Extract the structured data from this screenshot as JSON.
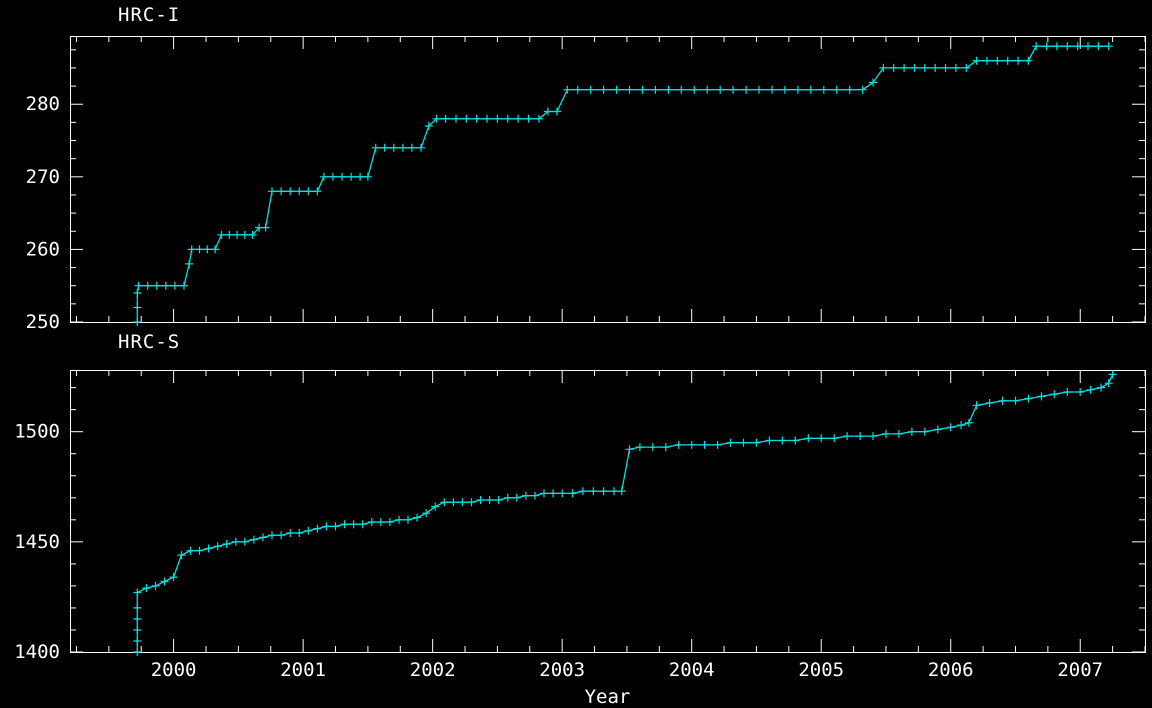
{
  "figure": {
    "bg_color": "#000000",
    "axis_color": "#ffffff",
    "series_color": "#00e0e0"
  },
  "chart_data": [
    {
      "type": "line",
      "title": "HRC-I",
      "xlabel": "",
      "ylabel": "",
      "marker": "plus",
      "legend": "none",
      "grid": false,
      "xlim": [
        1999.2,
        2007.5
      ],
      "ylim": [
        250,
        289.4
      ],
      "xticks": [
        2000,
        2001,
        2002,
        2003,
        2004,
        2005,
        2006,
        2007
      ],
      "xtick_minor_step": 0.25,
      "yticks": [
        250,
        260,
        270,
        280
      ],
      "ytick_minor_step": 2.5,
      "show_x_labels": false,
      "points": [
        [
          1999.72,
          250
        ],
        [
          1999.72,
          252
        ],
        [
          1999.72,
          254
        ],
        [
          1999.73,
          255
        ],
        [
          1999.8,
          255
        ],
        [
          1999.87,
          255
        ],
        [
          1999.94,
          255
        ],
        [
          2000.01,
          255
        ],
        [
          2000.08,
          255
        ],
        [
          2000.12,
          258
        ],
        [
          2000.14,
          260
        ],
        [
          2000.2,
          260
        ],
        [
          2000.26,
          260
        ],
        [
          2000.32,
          260
        ],
        [
          2000.37,
          262
        ],
        [
          2000.43,
          262
        ],
        [
          2000.49,
          262
        ],
        [
          2000.55,
          262
        ],
        [
          2000.61,
          262
        ],
        [
          2000.66,
          263
        ],
        [
          2000.71,
          263
        ],
        [
          2000.76,
          268
        ],
        [
          2000.83,
          268
        ],
        [
          2000.9,
          268
        ],
        [
          2000.97,
          268
        ],
        [
          2001.04,
          268
        ],
        [
          2001.11,
          268
        ],
        [
          2001.16,
          270
        ],
        [
          2001.23,
          270
        ],
        [
          2001.3,
          270
        ],
        [
          2001.37,
          270
        ],
        [
          2001.44,
          270
        ],
        [
          2001.5,
          270
        ],
        [
          2001.56,
          274
        ],
        [
          2001.63,
          274
        ],
        [
          2001.7,
          274
        ],
        [
          2001.77,
          274
        ],
        [
          2001.84,
          274
        ],
        [
          2001.91,
          274
        ],
        [
          2001.97,
          277
        ],
        [
          2002.03,
          278
        ],
        [
          2002.1,
          278
        ],
        [
          2002.18,
          278
        ],
        [
          2002.26,
          278
        ],
        [
          2002.34,
          278
        ],
        [
          2002.42,
          278
        ],
        [
          2002.5,
          278
        ],
        [
          2002.58,
          278
        ],
        [
          2002.66,
          278
        ],
        [
          2002.74,
          278
        ],
        [
          2002.82,
          278
        ],
        [
          2002.89,
          279
        ],
        [
          2002.96,
          279
        ],
        [
          2003.04,
          282
        ],
        [
          2003.12,
          282
        ],
        [
          2003.22,
          282
        ],
        [
          2003.32,
          282
        ],
        [
          2003.42,
          282
        ],
        [
          2003.52,
          282
        ],
        [
          2003.62,
          282
        ],
        [
          2003.72,
          282
        ],
        [
          2003.82,
          282
        ],
        [
          2003.92,
          282
        ],
        [
          2004.02,
          282
        ],
        [
          2004.12,
          282
        ],
        [
          2004.22,
          282
        ],
        [
          2004.32,
          282
        ],
        [
          2004.42,
          282
        ],
        [
          2004.52,
          282
        ],
        [
          2004.62,
          282
        ],
        [
          2004.72,
          282
        ],
        [
          2004.82,
          282
        ],
        [
          2004.92,
          282
        ],
        [
          2005.02,
          282
        ],
        [
          2005.12,
          282
        ],
        [
          2005.22,
          282
        ],
        [
          2005.32,
          282
        ],
        [
          2005.4,
          283
        ],
        [
          2005.48,
          285
        ],
        [
          2005.56,
          285
        ],
        [
          2005.64,
          285
        ],
        [
          2005.72,
          285
        ],
        [
          2005.8,
          285
        ],
        [
          2005.88,
          285
        ],
        [
          2005.96,
          285
        ],
        [
          2006.04,
          285
        ],
        [
          2006.12,
          285
        ],
        [
          2006.2,
          286
        ],
        [
          2006.28,
          286
        ],
        [
          2006.36,
          286
        ],
        [
          2006.44,
          286
        ],
        [
          2006.52,
          286
        ],
        [
          2006.6,
          286
        ],
        [
          2006.66,
          288
        ],
        [
          2006.74,
          288
        ],
        [
          2006.82,
          288
        ],
        [
          2006.9,
          288
        ],
        [
          2006.98,
          288
        ],
        [
          2007.06,
          288
        ],
        [
          2007.14,
          288
        ],
        [
          2007.22,
          288
        ]
      ]
    },
    {
      "type": "line",
      "title": "HRC-S",
      "xlabel": "Year",
      "ylabel": "",
      "marker": "plus",
      "legend": "none",
      "grid": false,
      "xlim": [
        1999.2,
        2007.5
      ],
      "ylim": [
        1400,
        1528
      ],
      "xticks": [
        2000,
        2001,
        2002,
        2003,
        2004,
        2005,
        2006,
        2007
      ],
      "xtick_minor_step": 0.25,
      "yticks": [
        1400,
        1450,
        1500
      ],
      "ytick_minor_step": 10,
      "show_x_labels": true,
      "points": [
        [
          1999.72,
          1400
        ],
        [
          1999.72,
          1405
        ],
        [
          1999.72,
          1410
        ],
        [
          1999.72,
          1415
        ],
        [
          1999.72,
          1420
        ],
        [
          1999.72,
          1427
        ],
        [
          1999.79,
          1429
        ],
        [
          1999.86,
          1430
        ],
        [
          1999.93,
          1432
        ],
        [
          2000.0,
          1434
        ],
        [
          2000.06,
          1444
        ],
        [
          2000.13,
          1446
        ],
        [
          2000.2,
          1446
        ],
        [
          2000.27,
          1447
        ],
        [
          2000.34,
          1448
        ],
        [
          2000.41,
          1449
        ],
        [
          2000.48,
          1450
        ],
        [
          2000.55,
          1450
        ],
        [
          2000.62,
          1451
        ],
        [
          2000.69,
          1452
        ],
        [
          2000.76,
          1453
        ],
        [
          2000.83,
          1453
        ],
        [
          2000.9,
          1454
        ],
        [
          2000.97,
          1454
        ],
        [
          2001.04,
          1455
        ],
        [
          2001.11,
          1456
        ],
        [
          2001.18,
          1457
        ],
        [
          2001.25,
          1457
        ],
        [
          2001.32,
          1458
        ],
        [
          2001.39,
          1458
        ],
        [
          2001.46,
          1458
        ],
        [
          2001.53,
          1459
        ],
        [
          2001.6,
          1459
        ],
        [
          2001.67,
          1459
        ],
        [
          2001.74,
          1460
        ],
        [
          2001.81,
          1460
        ],
        [
          2001.88,
          1461
        ],
        [
          2001.95,
          1463
        ],
        [
          2002.02,
          1466
        ],
        [
          2002.09,
          1468
        ],
        [
          2002.16,
          1468
        ],
        [
          2002.23,
          1468
        ],
        [
          2002.3,
          1468
        ],
        [
          2002.37,
          1469
        ],
        [
          2002.44,
          1469
        ],
        [
          2002.51,
          1469
        ],
        [
          2002.58,
          1470
        ],
        [
          2002.65,
          1470
        ],
        [
          2002.72,
          1471
        ],
        [
          2002.79,
          1471
        ],
        [
          2002.86,
          1472
        ],
        [
          2002.93,
          1472
        ],
        [
          2003.0,
          1472
        ],
        [
          2003.08,
          1472
        ],
        [
          2003.16,
          1473
        ],
        [
          2003.24,
          1473
        ],
        [
          2003.32,
          1473
        ],
        [
          2003.4,
          1473
        ],
        [
          2003.46,
          1473
        ],
        [
          2003.52,
          1492
        ],
        [
          2003.6,
          1493
        ],
        [
          2003.7,
          1493
        ],
        [
          2003.8,
          1493
        ],
        [
          2003.9,
          1494
        ],
        [
          2004.0,
          1494
        ],
        [
          2004.1,
          1494
        ],
        [
          2004.2,
          1494
        ],
        [
          2004.3,
          1495
        ],
        [
          2004.4,
          1495
        ],
        [
          2004.5,
          1495
        ],
        [
          2004.6,
          1496
        ],
        [
          2004.7,
          1496
        ],
        [
          2004.8,
          1496
        ],
        [
          2004.9,
          1497
        ],
        [
          2005.0,
          1497
        ],
        [
          2005.1,
          1497
        ],
        [
          2005.2,
          1498
        ],
        [
          2005.3,
          1498
        ],
        [
          2005.4,
          1498
        ],
        [
          2005.5,
          1499
        ],
        [
          2005.6,
          1499
        ],
        [
          2005.7,
          1500
        ],
        [
          2005.8,
          1500
        ],
        [
          2005.9,
          1501
        ],
        [
          2006.0,
          1502
        ],
        [
          2006.08,
          1503
        ],
        [
          2006.14,
          1504
        ],
        [
          2006.2,
          1512
        ],
        [
          2006.3,
          1513
        ],
        [
          2006.4,
          1514
        ],
        [
          2006.5,
          1514
        ],
        [
          2006.6,
          1515
        ],
        [
          2006.7,
          1516
        ],
        [
          2006.8,
          1517
        ],
        [
          2006.9,
          1518
        ],
        [
          2007.0,
          1518
        ],
        [
          2007.08,
          1519
        ],
        [
          2007.16,
          1520
        ],
        [
          2007.22,
          1522
        ],
        [
          2007.25,
          1526
        ]
      ]
    }
  ]
}
